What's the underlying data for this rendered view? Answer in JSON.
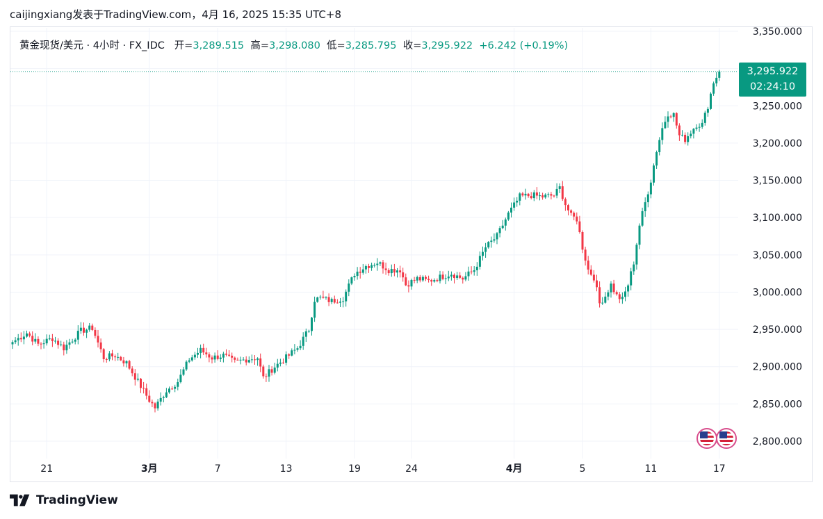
{
  "header": {
    "credit": "caijingxiang发表于TradingView.com，4月 16, 2025 15:35 UTC+8"
  },
  "legend": {
    "symbol": "黄金现货/美元 · 4小时 · FX_IDC",
    "open_label": "开=",
    "open_value": "3,289.515",
    "high_label": "高=",
    "high_value": "3,298.080",
    "low_label": "低=",
    "low_value": "3,285.795",
    "close_label": "收=",
    "close_value": "3,295.922",
    "change": "+6.242 (+0.19%)"
  },
  "price_tag": {
    "price": "3,295.922",
    "countdown": "02:24:10"
  },
  "footer": {
    "brand": "TradingView"
  },
  "colors": {
    "up": "#089981",
    "down": "#f23645",
    "grid": "#f0f3fa",
    "text": "#131722"
  },
  "icons": {
    "flags": "us-flag-icon",
    "logo": "tradingview-logo-icon"
  },
  "chart_data": {
    "type": "candlestick",
    "title": "黄金现货/美元 · 4小时 · FX_IDC",
    "ylim": [
      2790,
      3360
    ],
    "y_ticks": [
      "3,350.000",
      "3,300.000",
      "3,250.000",
      "3,200.000",
      "3,150.000",
      "3,100.000",
      "3,050.000",
      "3,000.000",
      "2,950.000",
      "2,900.000",
      "2,850.000",
      "2,800.000"
    ],
    "y_tick_values": [
      3350,
      3300,
      3250,
      3200,
      3150,
      3100,
      3050,
      3000,
      2950,
      2900,
      2850,
      2800
    ],
    "x_ticks": [
      {
        "label": "21",
        "bar": 12,
        "bold": false
      },
      {
        "label": "3月",
        "bar": 48,
        "bold": true
      },
      {
        "label": "7",
        "bar": 72,
        "bold": false
      },
      {
        "label": "13",
        "bar": 96,
        "bold": false
      },
      {
        "label": "19",
        "bar": 120,
        "bold": false
      },
      {
        "label": "24",
        "bar": 140,
        "bold": false
      },
      {
        "label": "4月",
        "bar": 176,
        "bold": true
      },
      {
        "label": "5",
        "bar": 200,
        "bold": false
      },
      {
        "label": "11",
        "bar": 224,
        "bold": false
      },
      {
        "label": "17",
        "bar": 248,
        "bold": false
      }
    ],
    "last_price": 3295.922,
    "anchors": [
      [
        0,
        2933
      ],
      [
        5,
        2945
      ],
      [
        9,
        2930
      ],
      [
        14,
        2938
      ],
      [
        18,
        2925
      ],
      [
        24,
        2948
      ],
      [
        28,
        2952
      ],
      [
        32,
        2912
      ],
      [
        36,
        2915
      ],
      [
        40,
        2905
      ],
      [
        44,
        2880
      ],
      [
        48,
        2855
      ],
      [
        50,
        2845
      ],
      [
        54,
        2868
      ],
      [
        58,
        2880
      ],
      [
        62,
        2910
      ],
      [
        66,
        2922
      ],
      [
        70,
        2912
      ],
      [
        74,
        2915
      ],
      [
        78,
        2906
      ],
      [
        82,
        2910
      ],
      [
        86,
        2912
      ],
      [
        88,
        2885
      ],
      [
        92,
        2900
      ],
      [
        96,
        2912
      ],
      [
        100,
        2925
      ],
      [
        104,
        2950
      ],
      [
        106,
        2990
      ],
      [
        108,
        2992
      ],
      [
        112,
        2988
      ],
      [
        116,
        2992
      ],
      [
        120,
        3025
      ],
      [
        124,
        3035
      ],
      [
        128,
        3040
      ],
      [
        132,
        3030
      ],
      [
        136,
        3030
      ],
      [
        138,
        3010
      ],
      [
        142,
        3018
      ],
      [
        146,
        3015
      ],
      [
        150,
        3020
      ],
      [
        154,
        3025
      ],
      [
        158,
        3018
      ],
      [
        162,
        3030
      ],
      [
        166,
        3060
      ],
      [
        170,
        3075
      ],
      [
        174,
        3105
      ],
      [
        178,
        3128
      ],
      [
        182,
        3130
      ],
      [
        186,
        3128
      ],
      [
        190,
        3130
      ],
      [
        192,
        3140
      ],
      [
        194,
        3118
      ],
      [
        196,
        3102
      ],
      [
        198,
        3098
      ],
      [
        200,
        3060
      ],
      [
        202,
        3030
      ],
      [
        204,
        3020
      ],
      [
        206,
        2985
      ],
      [
        208,
        2995
      ],
      [
        210,
        3010
      ],
      [
        212,
        2995
      ],
      [
        214,
        2990
      ],
      [
        216,
        3010
      ],
      [
        218,
        3040
      ],
      [
        220,
        3090
      ],
      [
        222,
        3120
      ],
      [
        224,
        3150
      ],
      [
        226,
        3190
      ],
      [
        228,
        3220
      ],
      [
        230,
        3240
      ],
      [
        232,
        3238
      ],
      [
        234,
        3210
      ],
      [
        236,
        3205
      ],
      [
        238,
        3215
      ],
      [
        240,
        3225
      ],
      [
        242,
        3225
      ],
      [
        244,
        3250
      ],
      [
        246,
        3282
      ],
      [
        247,
        3289
      ],
      [
        248,
        3296
      ]
    ]
  }
}
